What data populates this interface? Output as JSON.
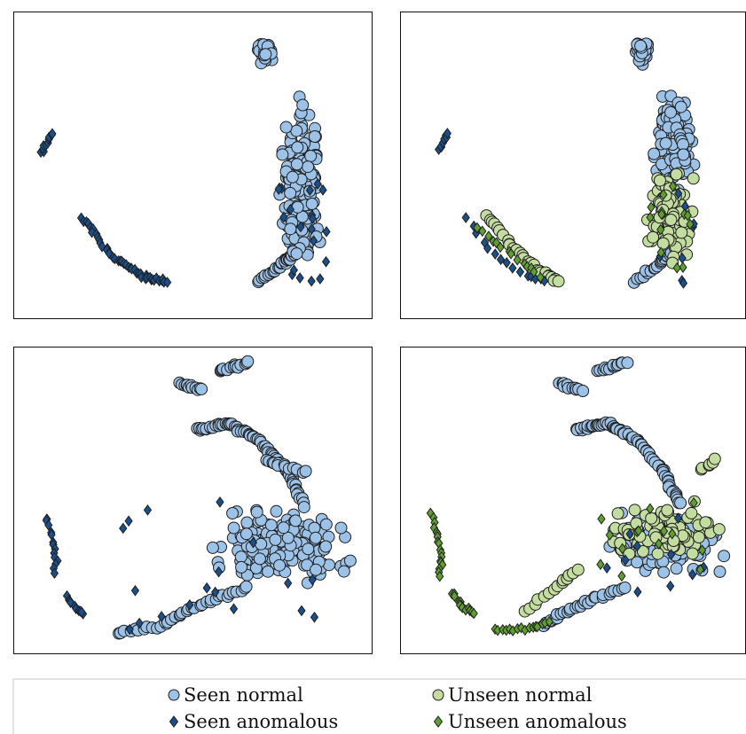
{
  "legend": {
    "items": [
      {
        "label": "Seen normal",
        "marker": "circle",
        "color": "#9cc2e8"
      },
      {
        "label": "Unseen normal",
        "marker": "circle",
        "color": "#c3dc9f"
      },
      {
        "label": "Seen anomalous",
        "marker": "diamond",
        "color": "#1b4f8a"
      },
      {
        "label": "Unseen anomalous",
        "marker": "diamond",
        "color": "#5f9f2f"
      }
    ]
  },
  "colors": {
    "seen_normal": "#9cc2e8",
    "unseen_normal": "#c3dc9f",
    "seen_anomalous": "#1b4f8a",
    "unseen_anomalous": "#5f9f2f",
    "edge": "#1f1f1f"
  },
  "chart_data": [
    {
      "type": "scatter",
      "panel": "top-left",
      "title": "",
      "xlabel": "",
      "ylabel": "",
      "grid": false,
      "xlim": [
        0,
        100
      ],
      "ylim": [
        0,
        100
      ],
      "series": [
        {
          "name": "Seen normal",
          "clusters": [
            {
              "shape": "blob",
              "x": [
                67,
                73
              ],
              "y": [
                82,
                92
              ],
              "n": 40
            },
            {
              "shape": "blob",
              "x": [
                72,
                87
              ],
              "y": [
                10,
                77
              ],
              "n": 230
            },
            {
              "shape": "path",
              "points": [
                [
                  68,
                  12
                ],
                [
                  75,
                  18
                ],
                [
                  79,
                  22
                ]
              ],
              "n": 25
            }
          ]
        },
        {
          "name": "Seen anomalous",
          "clusters": [
            {
              "shape": "path",
              "points": [
                [
                  8,
                  54
                ],
                [
                  11,
                  61
                ]
              ],
              "n": 10
            },
            {
              "shape": "path",
              "points": [
                [
                  19,
                  33
                ],
                [
                  27,
                  21
                ],
                [
                  36,
                  14
                ],
                [
                  43,
                  12
                ]
              ],
              "n": 45
            },
            {
              "shape": "scatter",
              "x": [
                73,
                88
              ],
              "y": [
                10,
                45
              ],
              "n": 20
            }
          ]
        }
      ]
    },
    {
      "type": "scatter",
      "panel": "top-right",
      "title": "",
      "xlabel": "",
      "ylabel": "",
      "grid": false,
      "xlim": [
        0,
        100
      ],
      "ylim": [
        0,
        100
      ],
      "series": [
        {
          "name": "Seen normal",
          "clusters": [
            {
              "shape": "blob",
              "x": [
                67,
                73
              ],
              "y": [
                82,
                92
              ],
              "n": 40
            },
            {
              "shape": "blob",
              "x": [
                72,
                87
              ],
              "y": [
                40,
                77
              ],
              "n": 160
            },
            {
              "shape": "path",
              "points": [
                [
                  68,
                  12
                ],
                [
                  75,
                  18
                ],
                [
                  79,
                  22
                ]
              ],
              "n": 20
            }
          ]
        },
        {
          "name": "Unseen normal",
          "clusters": [
            {
              "shape": "blob",
              "x": [
                70,
                87
              ],
              "y": [
                15,
                50
              ],
              "n": 110
            },
            {
              "shape": "path",
              "points": [
                [
                  25,
                  34
                ],
                [
                  32,
                  24
                ],
                [
                  40,
                  16
                ],
                [
                  46,
                  12
                ]
              ],
              "n": 30
            }
          ]
        },
        {
          "name": "Seen anomalous",
          "clusters": [
            {
              "shape": "path",
              "points": [
                [
                  11,
                  55
                ],
                [
                  14,
                  61
                ]
              ],
              "n": 8
            },
            {
              "shape": "path",
              "points": [
                [
                  19,
                  33
                ],
                [
                  27,
                  21
                ],
                [
                  36,
                  14
                ],
                [
                  43,
                  12
                ]
              ],
              "n": 15
            },
            {
              "shape": "scatter",
              "x": [
                73,
                88
              ],
              "y": [
                10,
                45
              ],
              "n": 8
            }
          ]
        },
        {
          "name": "Unseen anomalous",
          "clusters": [
            {
              "shape": "path",
              "points": [
                [
                  22,
                  30
                ],
                [
                  32,
                  21
                ],
                [
                  42,
                  13
                ]
              ],
              "n": 14
            },
            {
              "shape": "scatter",
              "x": [
                72,
                84
              ],
              "y": [
                15,
                45
              ],
              "n": 14
            }
          ]
        }
      ]
    },
    {
      "type": "scatter",
      "panel": "bottom-left",
      "title": "",
      "xlabel": "",
      "ylabel": "",
      "grid": false,
      "xlim": [
        0,
        100
      ],
      "ylim": [
        0,
        100
      ],
      "series": [
        {
          "name": "Seen normal",
          "clusters": [
            {
              "shape": "path",
              "points": [
                [
                  46,
                  88
                ],
                [
                  53,
                  86
                ]
              ],
              "n": 12
            },
            {
              "shape": "path",
              "points": [
                [
                  57,
                  92
                ],
                [
                  66,
                  95
                ]
              ],
              "n": 14
            },
            {
              "shape": "path",
              "points": [
                [
                  51,
                  73
                ],
                [
                  60,
                  75
                ],
                [
                  68,
                  70
                ],
                [
                  76,
                  60
                ],
                [
                  81,
                  48
                ]
              ],
              "n": 70
            },
            {
              "shape": "path",
              "points": [
                [
                  70,
                  63
                ],
                [
                  82,
                  59
                ]
              ],
              "n": 14
            },
            {
              "shape": "blob",
              "x": [
                53,
                96
              ],
              "y": [
                20,
                50
              ],
              "n": 180
            },
            {
              "shape": "path",
              "points": [
                [
                  29,
                  7
                ],
                [
                  41,
                  9
                ],
                [
                  48,
                  14
                ],
                [
                  56,
                  18
                ],
                [
                  66,
                  22
                ]
              ],
              "n": 40
            }
          ]
        },
        {
          "name": "Seen anomalous",
          "clusters": [
            {
              "shape": "path",
              "points": [
                [
                  9,
                  45
                ],
                [
                  11,
                  38
                ],
                [
                  12,
                  31
                ],
                [
                  11,
                  26
                ]
              ],
              "n": 14
            },
            {
              "shape": "path",
              "points": [
                [
                  15,
                  19
                ],
                [
                  17,
                  15
                ],
                [
                  20,
                  13
                ]
              ],
              "n": 10
            },
            {
              "shape": "scatter",
              "x": [
                30,
                90
              ],
              "y": [
                7,
                50
              ],
              "n": 18
            }
          ]
        }
      ]
    },
    {
      "type": "scatter",
      "panel": "bottom-right",
      "title": "",
      "xlabel": "",
      "ylabel": "",
      "grid": false,
      "xlim": [
        0,
        100
      ],
      "ylim": [
        0,
        100
      ],
      "series": [
        {
          "name": "Seen normal",
          "clusters": [
            {
              "shape": "path",
              "points": [
                [
                  46,
                  88
                ],
                [
                  53,
                  86
                ]
              ],
              "n": 12
            },
            {
              "shape": "path",
              "points": [
                [
                  57,
                  92
                ],
                [
                  66,
                  95
                ]
              ],
              "n": 14
            },
            {
              "shape": "path",
              "points": [
                [
                  51,
                  73
                ],
                [
                  60,
                  75
                ],
                [
                  68,
                  70
                ],
                [
                  76,
                  60
                ],
                [
                  81,
                  48
                ]
              ],
              "n": 70
            },
            {
              "shape": "blob",
              "x": [
                55,
                96
              ],
              "y": [
                20,
                50
              ],
              "n": 120
            },
            {
              "shape": "path",
              "points": [
                [
                  41,
                  9
                ],
                [
                  48,
                  14
                ],
                [
                  56,
                  18
                ],
                [
                  66,
                  22
                ]
              ],
              "n": 30
            }
          ]
        },
        {
          "name": "Unseen normal",
          "clusters": [
            {
              "shape": "blob",
              "x": [
                55,
                96
              ],
              "y": [
                28,
                52
              ],
              "n": 90
            },
            {
              "shape": "path",
              "points": [
                [
                  87,
                  60
                ],
                [
                  92,
                  64
                ]
              ],
              "n": 6
            },
            {
              "shape": "path",
              "points": [
                [
                  36,
                  14
                ],
                [
                  45,
                  22
                ],
                [
                  52,
                  28
                ]
              ],
              "n": 14
            }
          ]
        },
        {
          "name": "Seen anomalous",
          "clusters": [
            {
              "shape": "scatter",
              "x": [
                55,
                90
              ],
              "y": [
                20,
                50
              ],
              "n": 10
            }
          ]
        },
        {
          "name": "Unseen anomalous",
          "clusters": [
            {
              "shape": "path",
              "points": [
                [
                  9,
                  46
                ],
                [
                  11,
                  38
                ],
                [
                  12,
                  31
                ],
                [
                  11,
                  25
                ]
              ],
              "n": 18
            },
            {
              "shape": "path",
              "points": [
                [
                  15,
                  20
                ],
                [
                  18,
                  15
                ],
                [
                  22,
                  13
                ]
              ],
              "n": 14
            },
            {
              "shape": "path",
              "points": [
                [
                  27,
                  8
                ],
                [
                  36,
                  8
                ],
                [
                  44,
                  11
                ]
              ],
              "n": 16
            },
            {
              "shape": "scatter",
              "x": [
                55,
                90
              ],
              "y": [
                25,
                50
              ],
              "n": 14
            }
          ]
        }
      ]
    }
  ]
}
